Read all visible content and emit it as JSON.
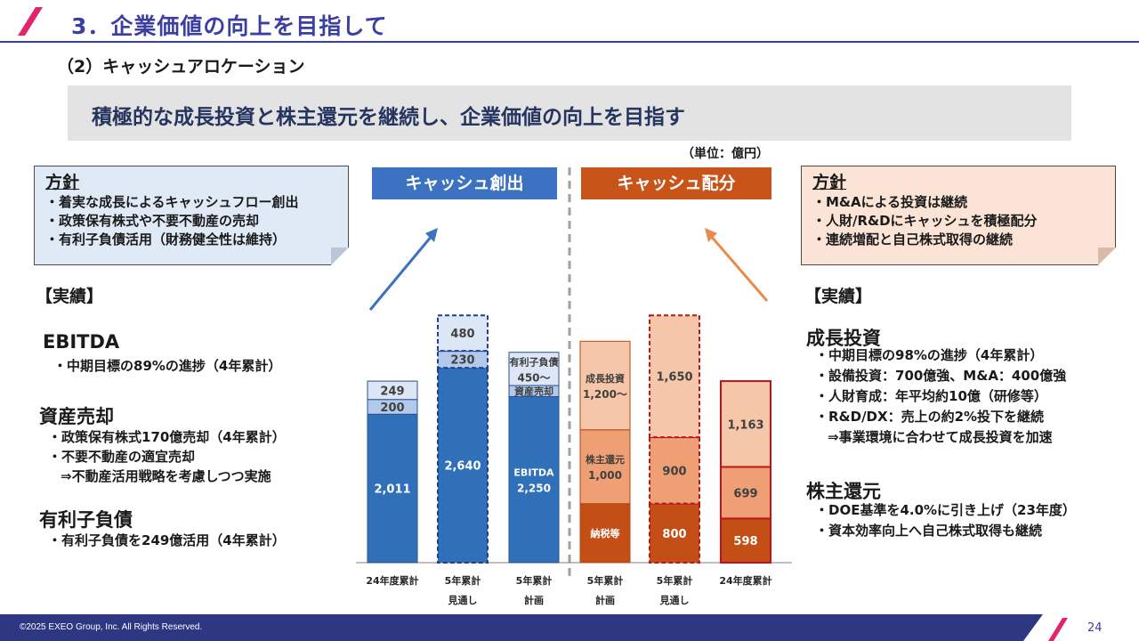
{
  "header": {
    "title": "3．企業価値の向上を目指して",
    "subtitle": "（2）キャッシュアロケーション",
    "banner": "積極的な成長投資と株主還元を継続し、企業価値の向上を目指す",
    "unit": "（単位：億円）"
  },
  "policy_left": {
    "title": "方針",
    "items": [
      "・着実な成長によるキャッシュフロー創出",
      "・政策保有株式や不要不動産の売却",
      "・有利子負債活用（財務健全性は維持）"
    ]
  },
  "policy_right": {
    "title": "方針",
    "items": [
      "・M&Aによる投資は継続",
      "・人財/R&Dにキャッシュを積極配分",
      "・連続増配と自己株式取得の継続"
    ]
  },
  "results_left": {
    "heading": "【実績】",
    "ebitda_title": "EBITDA",
    "ebitda_items": [
      "・中期目標の89%の進捗（4年累計）"
    ],
    "asset_title": "資産売却",
    "asset_items": [
      "・政策保有株式170億売却（4年累計）",
      "・不要不動産の適宜売却",
      "⇒不動産活用戦略を考慮しつつ実施"
    ],
    "debt_title": "有利子負債",
    "debt_items": [
      "・有利子負債を249億活用（4年累計）"
    ]
  },
  "results_right": {
    "heading": "【実績】",
    "growth_title": "成長投資",
    "growth_items": [
      "・中期目標の98%の進捗（4年累計）",
      "・設備投資：700億強、M&A：400億強",
      "・人財育成：年平均約10億（研修等）",
      "・R&D/DX：売上の約2%投下を継続",
      "⇒事業環境に合わせて成長投資を加速"
    ],
    "return_title": "株主還元",
    "return_items": [
      "・DOE基準を4.0%に引き上げ（23年度）",
      "・資本効率向上へ自己株式取得も継続"
    ]
  },
  "chart_data": {
    "type": "bar",
    "unit": "億円",
    "groups": [
      {
        "name": "キャッシュ創出",
        "color": "#3c72c1"
      },
      {
        "name": "キャッシュ配分",
        "color": "#c9541a"
      }
    ],
    "categories": [
      [
        "24年度累計"
      ],
      [
        "5年累計",
        "見通し"
      ],
      [
        "5年累計",
        "計画"
      ],
      [
        "5年累計",
        "計画"
      ],
      [
        "5年累計",
        "見通し"
      ],
      [
        "24年度累計"
      ]
    ],
    "bars": [
      {
        "segments": [
          {
            "label": "",
            "value": 2011,
            "display": "2,011",
            "style": "blue-solid"
          },
          {
            "label": "",
            "value": 200,
            "display": "200",
            "style": "blue-light"
          },
          {
            "label": "",
            "value": 249,
            "display": "249",
            "style": "blue-pale"
          }
        ]
      },
      {
        "segments": [
          {
            "label": "",
            "value": 2640,
            "display": "2,640",
            "style": "blue-solid-dashed"
          },
          {
            "label": "",
            "value": 230,
            "display": "230",
            "style": "blue-light-dashed"
          },
          {
            "label": "",
            "value": 480,
            "display": "480",
            "style": "blue-pale-dashed"
          }
        ]
      },
      {
        "segments": [
          {
            "label": "EBITDA",
            "value": 2250,
            "display": "2,250",
            "style": "blue-solid"
          },
          {
            "label": "資産売却",
            "value": 150,
            "display": "",
            "style": "blue-light"
          },
          {
            "label": "有利子負債",
            "value": 450,
            "display": "450～",
            "style": "blue-pale"
          }
        ]
      },
      {
        "segments": [
          {
            "label": "納税等",
            "value": 800,
            "display": "",
            "style": "orange-solid"
          },
          {
            "label": "株主還元",
            "value": 1000,
            "display": "1,000",
            "style": "orange-mid"
          },
          {
            "label": "成長投資",
            "value": 1200,
            "display": "1,200～",
            "style": "orange-light"
          }
        ]
      },
      {
        "segments": [
          {
            "label": "",
            "value": 800,
            "display": "800",
            "style": "orange-solid-dashed"
          },
          {
            "label": "",
            "value": 900,
            "display": "900",
            "style": "orange-mid-dashed"
          },
          {
            "label": "",
            "value": 1650,
            "display": "1,650",
            "style": "orange-light-dashed"
          }
        ]
      },
      {
        "segments": [
          {
            "label": "",
            "value": 598,
            "display": "598",
            "style": "orange-solid-border"
          },
          {
            "label": "",
            "value": 699,
            "display": "699",
            "style": "orange-mid-border"
          },
          {
            "label": "",
            "value": 1163,
            "display": "1,163",
            "style": "orange-light-border"
          }
        ]
      }
    ]
  },
  "footer": {
    "copyright": "©2025 EXEO Group, Inc. All Rights Reserved.",
    "page": "24"
  },
  "colors": {
    "accent": "#3a3fa0",
    "footer": "#2d3782",
    "creation": "#3c72c1",
    "allocation": "#c9541a",
    "slash": "#e2246e"
  }
}
